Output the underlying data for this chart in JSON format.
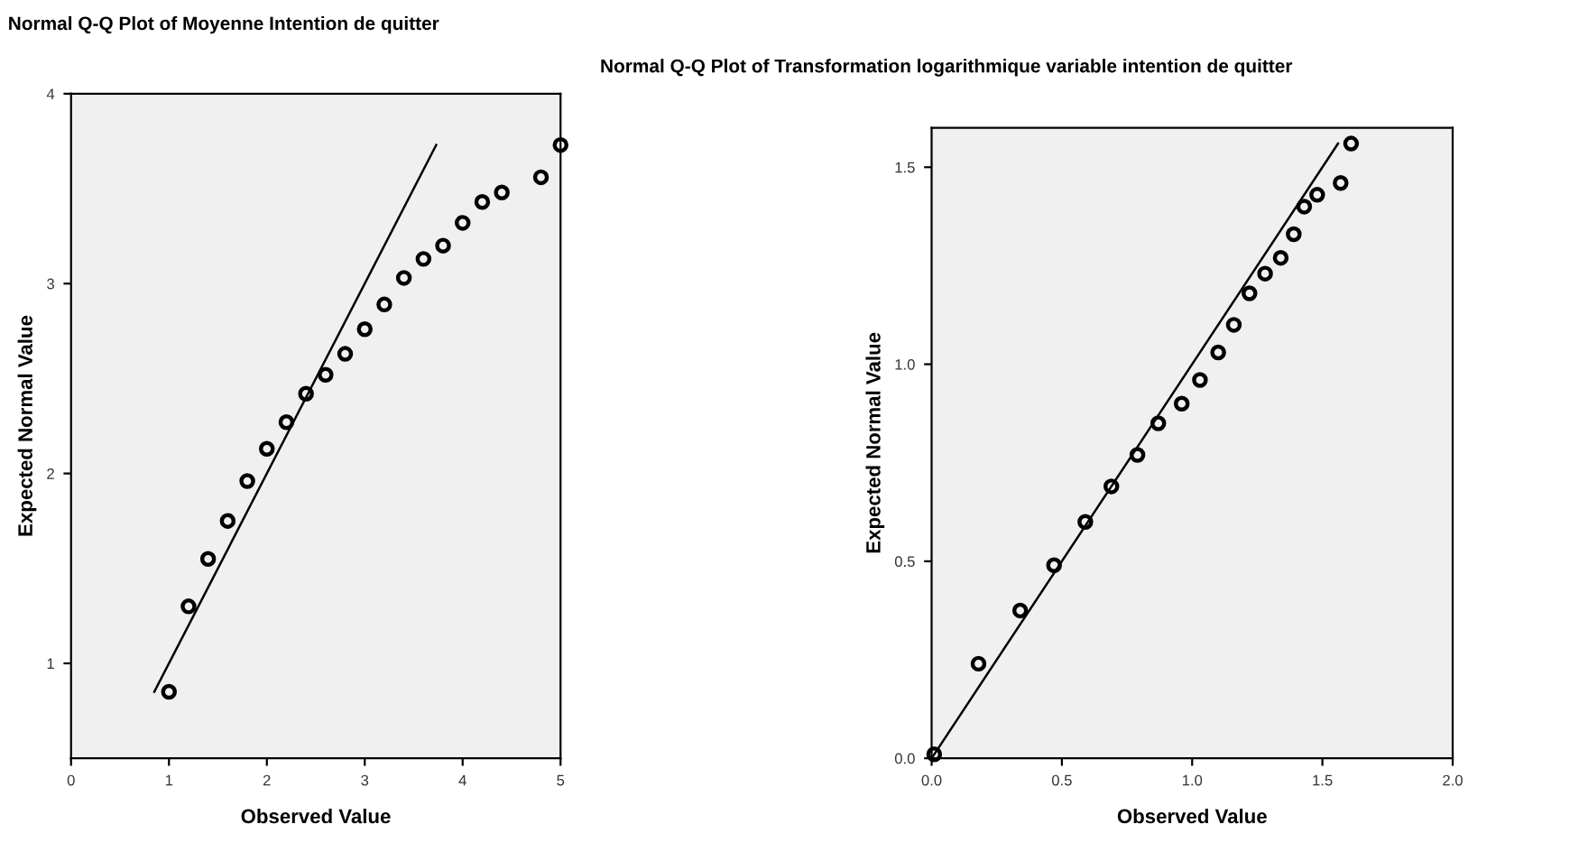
{
  "chart_data": [
    {
      "type": "scatter",
      "title": "Normal Q-Q Plot of Moyenne Intention de quitter",
      "xlabel": "Observed Value",
      "ylabel": "Expected Normal Value",
      "grid": false,
      "legend": false,
      "xlim": [
        0,
        5
      ],
      "ylim": [
        0.5,
        4
      ],
      "xticks": [
        0,
        1,
        2,
        3,
        4,
        5
      ],
      "yticks": [
        1,
        2,
        3,
        4
      ],
      "series": [
        {
          "marker": "circle",
          "color": "#000000",
          "x": [
            1.0,
            1.2,
            1.4,
            1.6,
            1.8,
            2.0,
            2.2,
            2.4,
            2.6,
            2.8,
            3.0,
            3.2,
            3.4,
            3.6,
            3.8,
            4.0,
            4.2,
            4.4,
            4.8,
            5.0
          ],
          "values": [
            0.85,
            1.3,
            1.55,
            1.75,
            1.96,
            2.13,
            2.27,
            2.42,
            2.52,
            2.63,
            2.76,
            2.89,
            3.03,
            3.13,
            3.2,
            3.32,
            3.43,
            3.48,
            3.56,
            3.73
          ]
        },
        {
          "type": "line",
          "color": "#000000",
          "x": [
            0.85,
            3.73
          ],
          "values": [
            0.85,
            3.73
          ]
        }
      ]
    },
    {
      "type": "scatter",
      "title": "Normal Q-Q Plot of Transformation logarithmique variable intention de quitter",
      "xlabel": "Observed Value",
      "ylabel": "Expected Normal Value",
      "grid": false,
      "legend": false,
      "xlim": [
        0,
        2
      ],
      "ylim": [
        0,
        1.6
      ],
      "xticks": [
        {
          "value": 0,
          "label": "0.0"
        },
        {
          "value": 0.5,
          "label": "0.5"
        },
        {
          "value": 1,
          "label": "1.0"
        },
        {
          "value": 1.5,
          "label": "1.5"
        },
        {
          "value": 2,
          "label": "2.0"
        }
      ],
      "yticks": [
        {
          "value": 0,
          "label": "0.0"
        },
        {
          "value": 0.5,
          "label": "0.5"
        },
        {
          "value": 1,
          "label": "1.0"
        },
        {
          "value": 1.5,
          "label": "1.5"
        }
      ],
      "series": [
        {
          "marker": "circle",
          "color": "#000000",
          "x": [
            0.01,
            0.18,
            0.34,
            0.47,
            0.59,
            0.69,
            0.79,
            0.87,
            0.96,
            1.03,
            1.1,
            1.16,
            1.22,
            1.28,
            1.34,
            1.39,
            1.43,
            1.48,
            1.57,
            1.61
          ],
          "values": [
            0.01,
            0.24,
            0.375,
            0.49,
            0.6,
            0.69,
            0.77,
            0.85,
            0.9,
            0.96,
            1.03,
            1.1,
            1.18,
            1.23,
            1.27,
            1.33,
            1.4,
            1.43,
            1.46,
            1.56
          ]
        },
        {
          "type": "line",
          "color": "#000000",
          "x": [
            0,
            1.56
          ],
          "values": [
            0,
            1.56
          ]
        }
      ]
    }
  ]
}
